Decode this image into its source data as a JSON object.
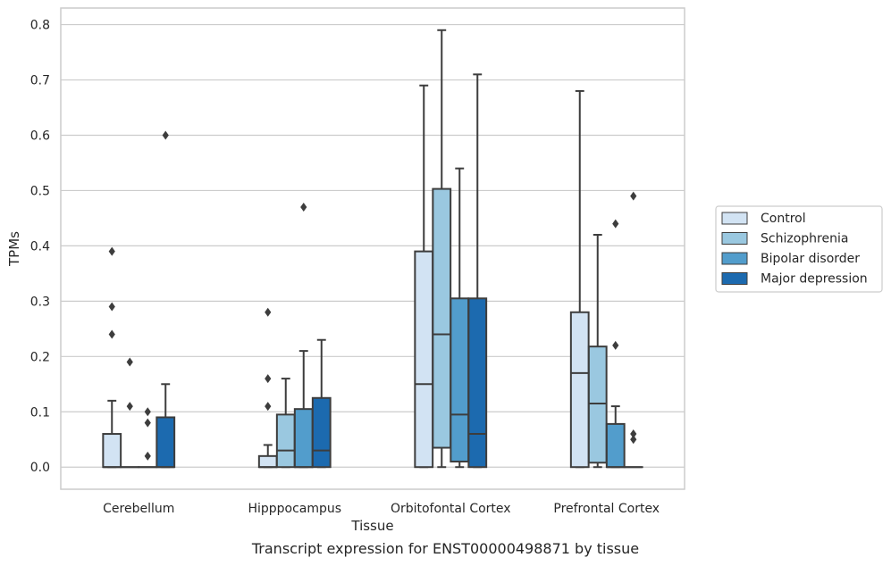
{
  "caption": "Transcript expression for ENST00000498871 by tissue",
  "chart_data": {
    "type": "box",
    "title": "",
    "xlabel": "Tissue",
    "ylabel": "TPMs",
    "ylim": [
      -0.04,
      0.83
    ],
    "yticks": [
      0.0,
      0.1,
      0.2,
      0.3,
      0.4,
      0.5,
      0.6,
      0.7,
      0.8
    ],
    "ytick_labels": [
      "0.0",
      "0.1",
      "0.2",
      "0.3",
      "0.4",
      "0.5",
      "0.6",
      "0.7",
      "0.8"
    ],
    "grid": "horizontal",
    "legend_position": "right",
    "categories": [
      "Cerebellum",
      "Hipppocampus",
      "Orbitofontal Cortex",
      "Prefrontal Cortex"
    ],
    "series": [
      {
        "name": "Control",
        "color": "#d2e3f3",
        "boxes": [
          {
            "low": 0.0,
            "q1": 0.0,
            "median": 0.0,
            "q3": 0.06,
            "high": 0.12,
            "outliers": [
              0.24,
              0.29,
              0.39
            ]
          },
          {
            "low": 0.0,
            "q1": 0.0,
            "median": 0.0,
            "q3": 0.02,
            "high": 0.04,
            "outliers": [
              0.11,
              0.16,
              0.28
            ]
          },
          {
            "low": 0.0,
            "q1": 0.0,
            "median": 0.15,
            "q3": 0.39,
            "high": 0.69,
            "outliers": []
          },
          {
            "low": 0.0,
            "q1": 0.0,
            "median": 0.17,
            "q3": 0.28,
            "high": 0.68,
            "outliers": []
          }
        ]
      },
      {
        "name": "Schizophrenia",
        "color": "#9ac8e0",
        "boxes": [
          {
            "low": 0.0,
            "q1": 0.0,
            "median": 0.0,
            "q3": 0.0,
            "high": 0.0,
            "outliers": [
              0.11,
              0.19
            ]
          },
          {
            "low": 0.0,
            "q1": 0.0,
            "median": 0.03,
            "q3": 0.095,
            "high": 0.16,
            "outliers": []
          },
          {
            "low": 0.0,
            "q1": 0.035,
            "median": 0.24,
            "q3": 0.503,
            "high": 0.79,
            "outliers": []
          },
          {
            "low": 0.0,
            "q1": 0.008,
            "median": 0.115,
            "q3": 0.218,
            "high": 0.42,
            "outliers": []
          }
        ]
      },
      {
        "name": "Bipolar disorder",
        "color": "#529dcc",
        "boxes": [
          {
            "low": 0.0,
            "q1": 0.0,
            "median": 0.0,
            "q3": 0.0,
            "high": 0.0,
            "outliers": [
              0.02,
              0.08,
              0.1
            ]
          },
          {
            "low": 0.0,
            "q1": 0.0,
            "median": 0.0,
            "q3": 0.105,
            "high": 0.21,
            "outliers": [
              0.47
            ]
          },
          {
            "low": 0.0,
            "q1": 0.01,
            "median": 0.095,
            "q3": 0.305,
            "high": 0.54,
            "outliers": []
          },
          {
            "low": 0.0,
            "q1": 0.0,
            "median": 0.0,
            "q3": 0.078,
            "high": 0.11,
            "outliers": [
              0.22,
              0.44
            ]
          }
        ]
      },
      {
        "name": "Major depression",
        "color": "#1c6aaf",
        "boxes": [
          {
            "low": 0.0,
            "q1": 0.0,
            "median": 0.0,
            "q3": 0.09,
            "high": 0.15,
            "outliers": [
              0.6
            ]
          },
          {
            "low": 0.0,
            "q1": 0.0,
            "median": 0.03,
            "q3": 0.125,
            "high": 0.23,
            "outliers": []
          },
          {
            "low": 0.0,
            "q1": 0.0,
            "median": 0.06,
            "q3": 0.305,
            "high": 0.71,
            "outliers": []
          },
          {
            "low": 0.0,
            "q1": 0.0,
            "median": 0.0,
            "q3": 0.0,
            "high": 0.0,
            "outliers": [
              0.05,
              0.06,
              0.49
            ]
          }
        ]
      }
    ]
  }
}
